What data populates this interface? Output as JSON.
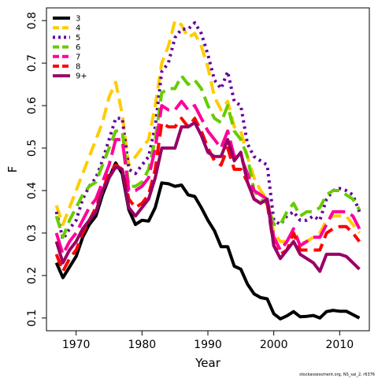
{
  "chart_data": {
    "type": "line",
    "title": "",
    "xlabel": "Year",
    "ylabel": "F",
    "xlim": [
      1965.5,
      2014.5
    ],
    "ylim": [
      0.07,
      0.83
    ],
    "x_ticks": [
      1970,
      1980,
      1990,
      2000,
      2010
    ],
    "y_ticks": [
      0.1,
      0.2,
      0.3,
      0.4,
      0.5,
      0.6,
      0.7,
      0.8
    ],
    "grid": false,
    "legend_position": "top-left",
    "series": [
      {
        "name": "3",
        "color": "#000000",
        "dash": "solid",
        "x": [
          1967,
          1968,
          1969,
          1970,
          1971,
          1972,
          1973,
          1974,
          1975,
          1976,
          1977,
          1978,
          1979,
          1980,
          1981,
          1982,
          1983,
          1984,
          1985,
          1986,
          1987,
          1988,
          1989,
          1990,
          1991,
          1992,
          1993,
          1994,
          1995,
          1996,
          1997,
          1998,
          1999,
          2000,
          2001,
          2002,
          2003,
          2004,
          2005,
          2006,
          2007,
          2008,
          2009,
          2010,
          2011,
          2012,
          2013
        ],
        "y": [
          0.23,
          0.195,
          0.22,
          0.245,
          0.29,
          0.32,
          0.34,
          0.39,
          0.43,
          0.465,
          0.44,
          0.355,
          0.32,
          0.33,
          0.328,
          0.36,
          0.418,
          0.416,
          0.41,
          0.413,
          0.39,
          0.386,
          0.36,
          0.33,
          0.305,
          0.268,
          0.268,
          0.222,
          0.215,
          0.18,
          0.157,
          0.148,
          0.145,
          0.11,
          0.098,
          0.105,
          0.115,
          0.103,
          0.104,
          0.106,
          0.1,
          0.115,
          0.118,
          0.116,
          0.116,
          0.108,
          0.1
        ]
      },
      {
        "name": "4",
        "color": "#FFCC00",
        "dash": "dashed",
        "x": [
          1967,
          1968,
          1969,
          1970,
          1971,
          1972,
          1973,
          1974,
          1975,
          1976,
          1977,
          1978,
          1979,
          1980,
          1981,
          1982,
          1983,
          1984,
          1985,
          1986,
          1987,
          1988,
          1989,
          1990,
          1991,
          1992,
          1993,
          1994,
          1995,
          1996,
          1997,
          1998,
          1999,
          2000,
          2001,
          2002,
          2003,
          2004,
          2005,
          2006,
          2007,
          2008,
          2009,
          2010,
          2011,
          2012,
          2013
        ],
        "y": [
          0.365,
          0.32,
          0.36,
          0.4,
          0.44,
          0.48,
          0.52,
          0.56,
          0.62,
          0.655,
          0.58,
          0.46,
          0.48,
          0.5,
          0.52,
          0.6,
          0.7,
          0.74,
          0.8,
          0.79,
          0.76,
          0.77,
          0.74,
          0.69,
          0.62,
          0.59,
          0.61,
          0.55,
          0.54,
          0.48,
          0.43,
          0.4,
          0.38,
          0.3,
          0.28,
          0.28,
          0.3,
          0.275,
          0.28,
          0.29,
          0.3,
          0.33,
          0.34,
          0.34,
          0.34,
          0.32,
          0.3
        ]
      },
      {
        "name": "5",
        "color": "#660099",
        "dash": "dotted",
        "x": [
          1967,
          1968,
          1969,
          1970,
          1971,
          1972,
          1973,
          1974,
          1975,
          1976,
          1977,
          1978,
          1979,
          1980,
          1981,
          1982,
          1983,
          1984,
          1985,
          1986,
          1987,
          1988,
          1989,
          1990,
          1991,
          1992,
          1993,
          1994,
          1995,
          1996,
          1997,
          1998,
          1999,
          2000,
          2001,
          2002,
          2003,
          2004,
          2005,
          2006,
          2007,
          2008,
          2009,
          2010,
          2011,
          2012,
          2013
        ],
        "y": [
          0.35,
          0.285,
          0.31,
          0.33,
          0.38,
          0.41,
          0.43,
          0.47,
          0.52,
          0.57,
          0.57,
          0.45,
          0.44,
          0.46,
          0.48,
          0.55,
          0.68,
          0.7,
          0.76,
          0.78,
          0.78,
          0.795,
          0.77,
          0.72,
          0.66,
          0.64,
          0.68,
          0.61,
          0.6,
          0.51,
          0.48,
          0.47,
          0.46,
          0.33,
          0.32,
          0.34,
          0.35,
          0.33,
          0.33,
          0.34,
          0.33,
          0.38,
          0.4,
          0.405,
          0.4,
          0.39,
          0.35
        ]
      },
      {
        "name": "6",
        "color": "#66CC00",
        "dash": "dashed",
        "x": [
          1967,
          1968,
          1969,
          1970,
          1971,
          1972,
          1973,
          1974,
          1975,
          1976,
          1977,
          1978,
          1979,
          1980,
          1981,
          1982,
          1983,
          1984,
          1985,
          1986,
          1987,
          1988,
          1989,
          1990,
          1991,
          1992,
          1993,
          1994,
          1995,
          1996,
          1997,
          1998,
          1999,
          2000,
          2001,
          2002,
          2003,
          2004,
          2005,
          2006,
          2007,
          2008,
          2009,
          2010,
          2011,
          2012,
          2013
        ],
        "y": [
          0.34,
          0.29,
          0.33,
          0.36,
          0.39,
          0.41,
          0.42,
          0.46,
          0.5,
          0.54,
          0.54,
          0.41,
          0.41,
          0.42,
          0.45,
          0.52,
          0.63,
          0.64,
          0.64,
          0.67,
          0.65,
          0.66,
          0.64,
          0.6,
          0.57,
          0.56,
          0.6,
          0.54,
          0.52,
          0.48,
          0.4,
          0.38,
          0.37,
          0.32,
          0.32,
          0.35,
          0.37,
          0.34,
          0.35,
          0.35,
          0.36,
          0.39,
          0.4,
          0.4,
          0.39,
          0.38,
          0.355
        ]
      },
      {
        "name": "7",
        "color": "#FF0099",
        "dash": "longdash",
        "x": [
          1967,
          1968,
          1969,
          1970,
          1971,
          1972,
          1973,
          1974,
          1975,
          1976,
          1977,
          1978,
          1979,
          1980,
          1981,
          1982,
          1983,
          1984,
          1985,
          1986,
          1987,
          1988,
          1989,
          1990,
          1991,
          1992,
          1993,
          1994,
          1995,
          1996,
          1997,
          1998,
          1999,
          2000,
          2001,
          2002,
          2003,
          2004,
          2005,
          2006,
          2007,
          2008,
          2009,
          2010,
          2011,
          2012,
          2013
        ],
        "y": [
          0.3,
          0.25,
          0.28,
          0.3,
          0.33,
          0.36,
          0.38,
          0.42,
          0.46,
          0.52,
          0.52,
          0.4,
          0.4,
          0.41,
          0.43,
          0.5,
          0.6,
          0.59,
          0.59,
          0.61,
          0.59,
          0.6,
          0.57,
          0.54,
          0.52,
          0.5,
          0.54,
          0.48,
          0.48,
          0.44,
          0.4,
          0.39,
          0.38,
          0.29,
          0.26,
          0.28,
          0.31,
          0.27,
          0.28,
          0.29,
          0.29,
          0.32,
          0.35,
          0.35,
          0.35,
          0.34,
          0.31
        ]
      },
      {
        "name": "8",
        "color": "#FF0000",
        "dash": "dashed",
        "x": [
          1967,
          1968,
          1969,
          1970,
          1971,
          1972,
          1973,
          1974,
          1975,
          1976,
          1977,
          1978,
          1979,
          1980,
          1981,
          1982,
          1983,
          1984,
          1985,
          1986,
          1987,
          1988,
          1989,
          1990,
          1991,
          1992,
          1993,
          1994,
          1995,
          1996,
          1997,
          1998,
          1999,
          2000,
          2001,
          2002,
          2003,
          2004,
          2005,
          2006,
          2007,
          2008,
          2009,
          2010,
          2011,
          2012,
          2013
        ],
        "y": [
          0.25,
          0.21,
          0.24,
          0.26,
          0.3,
          0.33,
          0.36,
          0.4,
          0.44,
          0.46,
          0.45,
          0.38,
          0.36,
          0.37,
          0.39,
          0.45,
          0.56,
          0.55,
          0.55,
          0.57,
          0.55,
          0.57,
          0.54,
          0.5,
          0.47,
          0.46,
          0.5,
          0.45,
          0.45,
          0.42,
          0.38,
          0.37,
          0.37,
          0.27,
          0.25,
          0.26,
          0.3,
          0.26,
          0.26,
          0.26,
          0.26,
          0.3,
          0.31,
          0.315,
          0.315,
          0.3,
          0.28
        ]
      },
      {
        "name": "9+",
        "color": "#990066",
        "dash": "solid",
        "x": [
          1967,
          1968,
          1969,
          1970,
          1971,
          1972,
          1973,
          1974,
          1975,
          1976,
          1977,
          1978,
          1979,
          1980,
          1981,
          1982,
          1983,
          1984,
          1985,
          1986,
          1987,
          1988,
          1989,
          1990,
          1991,
          1992,
          1993,
          1994,
          1995,
          1996,
          1997,
          1998,
          1999,
          2000,
          2001,
          2002,
          2003,
          2004,
          2005,
          2006,
          2007,
          2008,
          2009,
          2010,
          2011,
          2012,
          2013
        ],
        "y": [
          0.28,
          0.23,
          0.26,
          0.28,
          0.31,
          0.33,
          0.35,
          0.4,
          0.43,
          0.455,
          0.45,
          0.36,
          0.34,
          0.36,
          0.38,
          0.43,
          0.5,
          0.5,
          0.5,
          0.55,
          0.55,
          0.56,
          0.53,
          0.49,
          0.48,
          0.48,
          0.52,
          0.47,
          0.49,
          0.42,
          0.38,
          0.37,
          0.38,
          0.27,
          0.24,
          0.26,
          0.28,
          0.25,
          0.24,
          0.23,
          0.21,
          0.25,
          0.25,
          0.25,
          0.245,
          0.23,
          0.215
        ]
      }
    ]
  },
  "footer": {
    "credit": "stockassessment.org, NS_sai_2, r6376"
  }
}
